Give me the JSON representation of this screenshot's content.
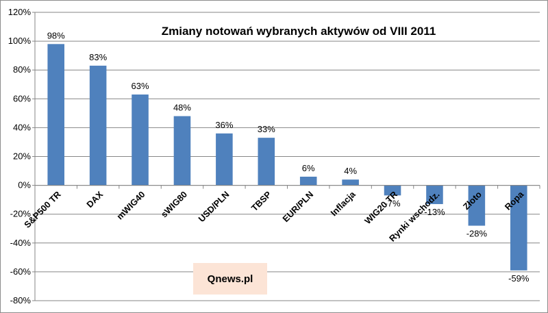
{
  "chart_data": {
    "type": "bar",
    "title": "Zmiany notowań wybranych aktywów od VIII 2011",
    "xlabel": "",
    "ylabel": "",
    "categories": [
      "S&P500 TR",
      "DAX",
      "mWIG40",
      "sWIG80",
      "USD/PLN",
      "TBSP",
      "EUR/PLN",
      "Inflacja",
      "WIG20 TR",
      "Rynki wschodz.",
      "Złoto",
      "Ropa"
    ],
    "values": [
      98,
      83,
      63,
      48,
      36,
      33,
      6,
      4,
      -7,
      -13,
      -28,
      -59
    ],
    "data_labels": [
      "98%",
      "83%",
      "63%",
      "48%",
      "36%",
      "33%",
      "6%",
      "4%",
      "-7%",
      "-13%",
      "-28%",
      "-59%"
    ],
    "ylim": [
      -80,
      120
    ],
    "yticks": [
      120,
      100,
      80,
      60,
      40,
      20,
      0,
      -20,
      -40,
      -60,
      -80
    ],
    "ytick_labels": [
      "120%",
      "100%",
      "80%",
      "60%",
      "40%",
      "20%",
      "0%",
      "-20%",
      "-40%",
      "-60%",
      "-80%"
    ],
    "grid": true,
    "legend": "none",
    "bar_color": "#4f81bd",
    "grid_color": "#868686"
  },
  "watermark": {
    "text": "Qnews.pl",
    "background": "#fce4d6"
  }
}
